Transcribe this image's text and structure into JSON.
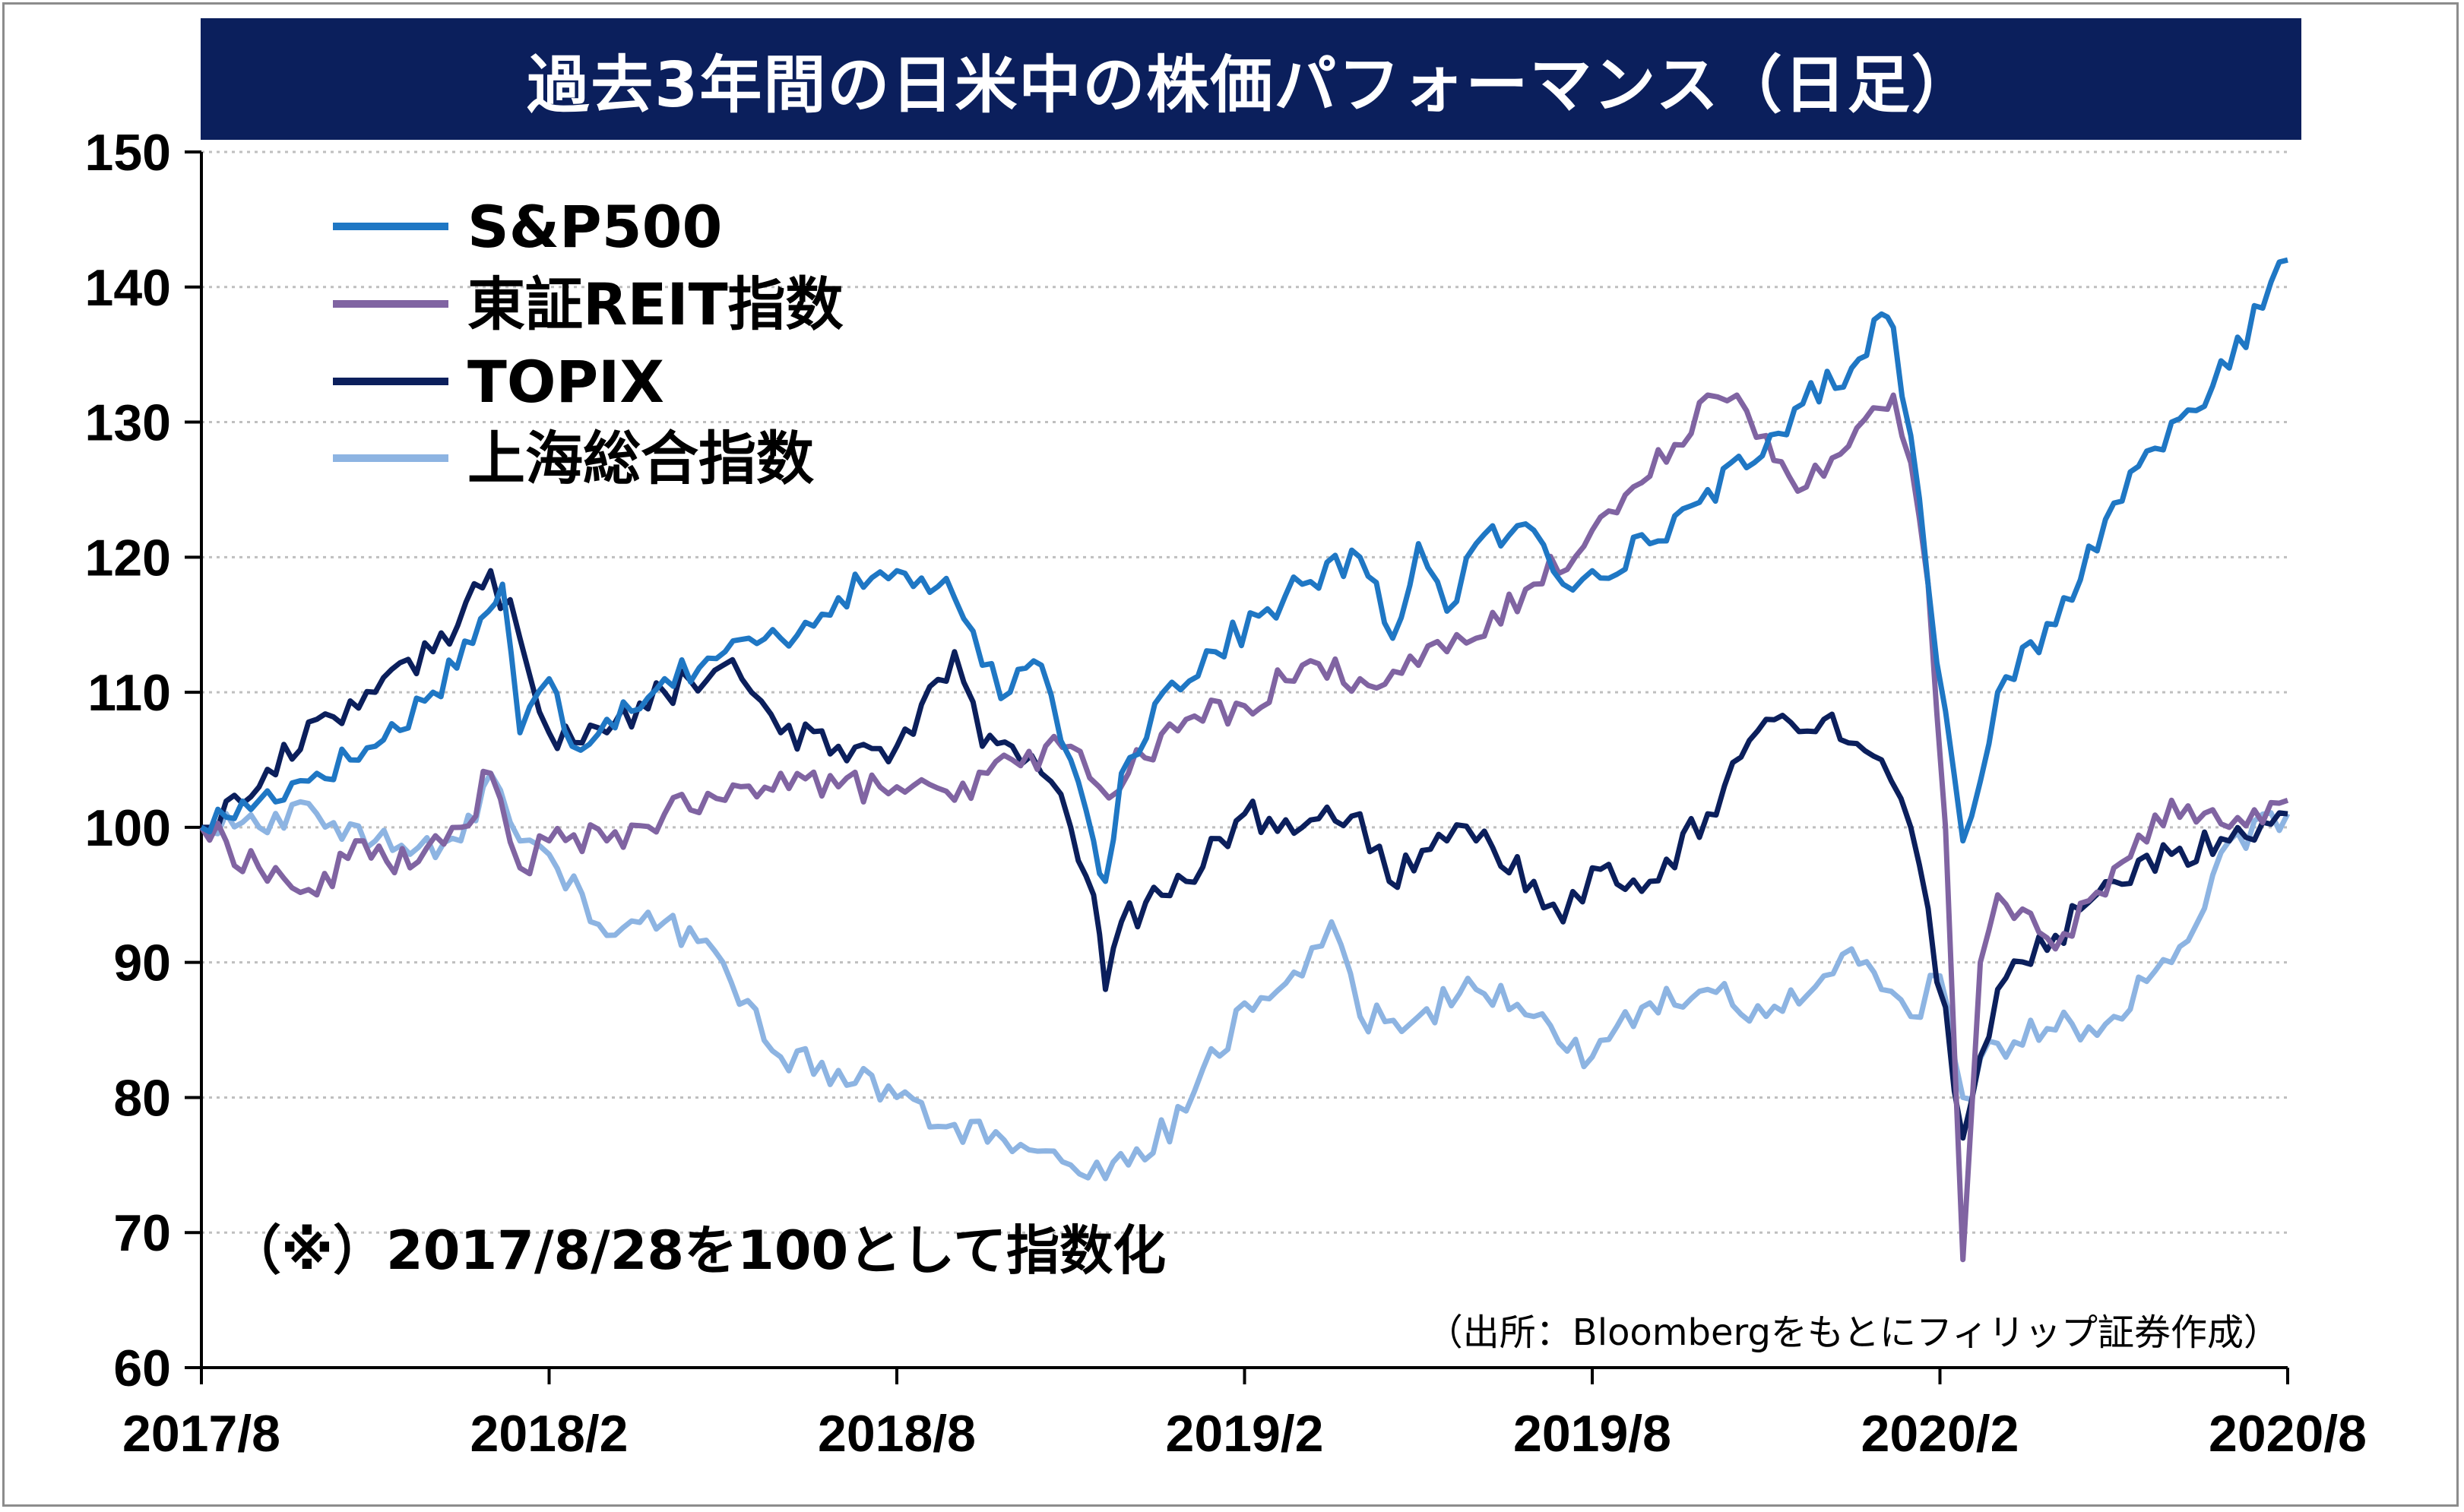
{
  "chart_data": {
    "type": "line",
    "title": "過去3年間の日米中の株価パフォーマンス（日足）",
    "note": "（※）2017/8/28を100として指数化",
    "source": "（出所：Bloombergをもとにフィリップ証券作成）",
    "ylim": [
      60,
      150
    ],
    "yticks": [
      60,
      70,
      80,
      90,
      100,
      110,
      120,
      130,
      140,
      150
    ],
    "xlim": [
      2017.667,
      2020.667
    ],
    "xticks": [
      {
        "label": "2017/8",
        "t": 2017.667
      },
      {
        "label": "2018/2",
        "t": 2018.167
      },
      {
        "label": "2018/8",
        "t": 2018.667
      },
      {
        "label": "2019/2",
        "t": 2019.167
      },
      {
        "label": "2019/8",
        "t": 2019.667
      },
      {
        "label": "2020/2",
        "t": 2020.167
      },
      {
        "label": "2020/8",
        "t": 2020.667
      }
    ],
    "grid": true,
    "legend_position": "top-left",
    "series": [
      {
        "name": "S&P500",
        "color": "#1f77c4",
        "points": [
          [
            2017.667,
            100
          ],
          [
            2017.75,
            102
          ],
          [
            2017.833,
            104
          ],
          [
            2017.917,
            106
          ],
          [
            2018.0,
            110
          ],
          [
            2018.08,
            116
          ],
          [
            2018.1,
            118
          ],
          [
            2018.125,
            107
          ],
          [
            2018.167,
            111
          ],
          [
            2018.2,
            106
          ],
          [
            2018.25,
            108
          ],
          [
            2018.333,
            111
          ],
          [
            2018.42,
            113
          ],
          [
            2018.5,
            114
          ],
          [
            2018.583,
            117
          ],
          [
            2018.667,
            119
          ],
          [
            2018.75,
            117
          ],
          [
            2018.79,
            112
          ],
          [
            2018.83,
            110
          ],
          [
            2018.875,
            112
          ],
          [
            2018.917,
            105
          ],
          [
            2018.95,
            99
          ],
          [
            2018.967,
            96
          ],
          [
            2018.99,
            104
          ],
          [
            2019.05,
            110
          ],
          [
            2019.125,
            113
          ],
          [
            2019.25,
            118
          ],
          [
            2019.333,
            120
          ],
          [
            2019.38,
            114
          ],
          [
            2019.417,
            121
          ],
          [
            2019.458,
            116
          ],
          [
            2019.5,
            121
          ],
          [
            2019.583,
            122
          ],
          [
            2019.625,
            118
          ],
          [
            2019.667,
            119
          ],
          [
            2019.75,
            121
          ],
          [
            2019.833,
            125
          ],
          [
            2019.9,
            127
          ],
          [
            2019.958,
            131
          ],
          [
            2020.04,
            134
          ],
          [
            2020.083,
            138
          ],
          [
            2020.1,
            137
          ],
          [
            2020.125,
            129
          ],
          [
            2020.15,
            118
          ],
          [
            2020.2,
            99
          ],
          [
            2020.25,
            110
          ],
          [
            2020.333,
            115
          ],
          [
            2020.417,
            124
          ],
          [
            2020.5,
            130
          ],
          [
            2020.583,
            134
          ],
          [
            2020.667,
            142
          ]
        ]
      },
      {
        "name": "東証REIT指数",
        "color": "#8064a2",
        "points": [
          [
            2017.667,
            100
          ],
          [
            2017.75,
            97
          ],
          [
            2017.833,
            95
          ],
          [
            2017.9,
            99
          ],
          [
            2017.967,
            97
          ],
          [
            2018.04,
            100
          ],
          [
            2018.083,
            104
          ],
          [
            2018.125,
            97
          ],
          [
            2018.167,
            99
          ],
          [
            2018.25,
            99
          ],
          [
            2018.333,
            101
          ],
          [
            2018.42,
            102
          ],
          [
            2018.5,
            104
          ],
          [
            2018.583,
            103
          ],
          [
            2018.667,
            103
          ],
          [
            2018.75,
            102
          ],
          [
            2018.833,
            105
          ],
          [
            2018.917,
            106
          ],
          [
            2018.958,
            103
          ],
          [
            2019.0,
            104
          ],
          [
            2019.083,
            108
          ],
          [
            2019.167,
            109
          ],
          [
            2019.25,
            112
          ],
          [
            2019.333,
            111
          ],
          [
            2019.417,
            112
          ],
          [
            2019.458,
            113
          ],
          [
            2019.5,
            114
          ],
          [
            2019.583,
            118
          ],
          [
            2019.667,
            122
          ],
          [
            2019.75,
            126
          ],
          [
            2019.833,
            132
          ],
          [
            2019.875,
            132
          ],
          [
            2019.917,
            129
          ],
          [
            2019.95,
            126
          ],
          [
            2020.0,
            126
          ],
          [
            2020.083,
            131
          ],
          [
            2020.1,
            132
          ],
          [
            2020.125,
            127
          ],
          [
            2020.15,
            118
          ],
          [
            2020.175,
            100
          ],
          [
            2020.2,
            68
          ],
          [
            2020.225,
            90
          ],
          [
            2020.25,
            95
          ],
          [
            2020.333,
            91
          ],
          [
            2020.417,
            97
          ],
          [
            2020.5,
            102
          ],
          [
            2020.583,
            100
          ],
          [
            2020.667,
            102
          ]
        ]
      },
      {
        "name": "TOPIX",
        "color": "#0b1f5c",
        "points": [
          [
            2017.667,
            100
          ],
          [
            2017.75,
            103
          ],
          [
            2017.833,
            108
          ],
          [
            2017.917,
            110
          ],
          [
            2018.0,
            113
          ],
          [
            2018.083,
            119
          ],
          [
            2018.125,
            114
          ],
          [
            2018.167,
            107
          ],
          [
            2018.25,
            107
          ],
          [
            2018.333,
            110
          ],
          [
            2018.417,
            112
          ],
          [
            2018.458,
            110
          ],
          [
            2018.5,
            107
          ],
          [
            2018.583,
            106
          ],
          [
            2018.667,
            106
          ],
          [
            2018.75,
            113
          ],
          [
            2018.79,
            106
          ],
          [
            2018.833,
            106
          ],
          [
            2018.875,
            104
          ],
          [
            2018.917,
            100
          ],
          [
            2018.95,
            95
          ],
          [
            2018.967,
            88
          ],
          [
            2018.99,
            93
          ],
          [
            2019.083,
            96
          ],
          [
            2019.167,
            101
          ],
          [
            2019.25,
            100
          ],
          [
            2019.333,
            101
          ],
          [
            2019.375,
            96
          ],
          [
            2019.458,
            99
          ],
          [
            2019.5,
            99
          ],
          [
            2019.583,
            96
          ],
          [
            2019.625,
            93
          ],
          [
            2019.667,
            97
          ],
          [
            2019.75,
            96
          ],
          [
            2019.833,
            101
          ],
          [
            2019.917,
            108
          ],
          [
            2020.0,
            108
          ],
          [
            2020.083,
            105
          ],
          [
            2020.125,
            100
          ],
          [
            2020.15,
            94
          ],
          [
            2020.2,
            77
          ],
          [
            2020.25,
            88
          ],
          [
            2020.333,
            92
          ],
          [
            2020.417,
            96
          ],
          [
            2020.5,
            98
          ],
          [
            2020.583,
            99
          ],
          [
            2020.667,
            101
          ]
        ]
      },
      {
        "name": "上海総合指数",
        "color": "#8db4e2",
        "points": [
          [
            2017.667,
            100
          ],
          [
            2017.75,
            100
          ],
          [
            2017.833,
            101
          ],
          [
            2017.917,
            99
          ],
          [
            2017.967,
            98
          ],
          [
            2018.04,
            99
          ],
          [
            2018.083,
            104
          ],
          [
            2018.125,
            99
          ],
          [
            2018.167,
            98
          ],
          [
            2018.25,
            92
          ],
          [
            2018.333,
            93
          ],
          [
            2018.417,
            90
          ],
          [
            2018.5,
            83
          ],
          [
            2018.583,
            82
          ],
          [
            2018.667,
            80
          ],
          [
            2018.75,
            78
          ],
          [
            2018.833,
            76
          ],
          [
            2018.917,
            75
          ],
          [
            2018.967,
            74
          ],
          [
            2019.0,
            75
          ],
          [
            2019.083,
            79
          ],
          [
            2019.167,
            87
          ],
          [
            2019.25,
            89
          ],
          [
            2019.292,
            93
          ],
          [
            2019.333,
            86
          ],
          [
            2019.417,
            86
          ],
          [
            2019.5,
            88
          ],
          [
            2019.583,
            86
          ],
          [
            2019.667,
            83
          ],
          [
            2019.75,
            87
          ],
          [
            2019.833,
            88
          ],
          [
            2019.917,
            86
          ],
          [
            2020.0,
            89
          ],
          [
            2020.04,
            91
          ],
          [
            2020.083,
            88
          ],
          [
            2020.125,
            86
          ],
          [
            2020.167,
            89
          ],
          [
            2020.2,
            80
          ],
          [
            2020.25,
            84
          ],
          [
            2020.333,
            85
          ],
          [
            2020.417,
            86
          ],
          [
            2020.5,
            90
          ],
          [
            2020.583,
            99
          ],
          [
            2020.667,
            101
          ]
        ]
      }
    ]
  }
}
